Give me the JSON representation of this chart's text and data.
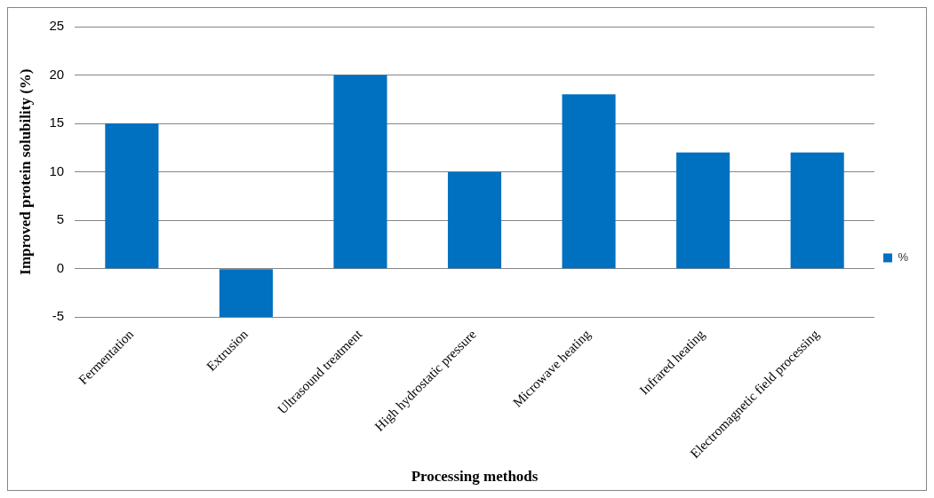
{
  "chart_data": {
    "type": "bar",
    "xlabel": "Processing methods",
    "ylabel": "Improved protein solubility (%)",
    "categories": [
      "Fermentation",
      "Extrusion",
      "Ultrasound treatment",
      "High hydrostatic pressure",
      "Microwave heating",
      "Infrared heating",
      "Electromagnetic field processing"
    ],
    "series": [
      {
        "name": "%",
        "color": "#0070c0",
        "values": [
          15,
          -5,
          20,
          10,
          18,
          12,
          12
        ]
      }
    ],
    "ylim": [
      -5,
      25
    ],
    "yticks": [
      -5,
      0,
      5,
      10,
      15,
      20,
      25
    ],
    "grid": "y",
    "legend": "right"
  }
}
